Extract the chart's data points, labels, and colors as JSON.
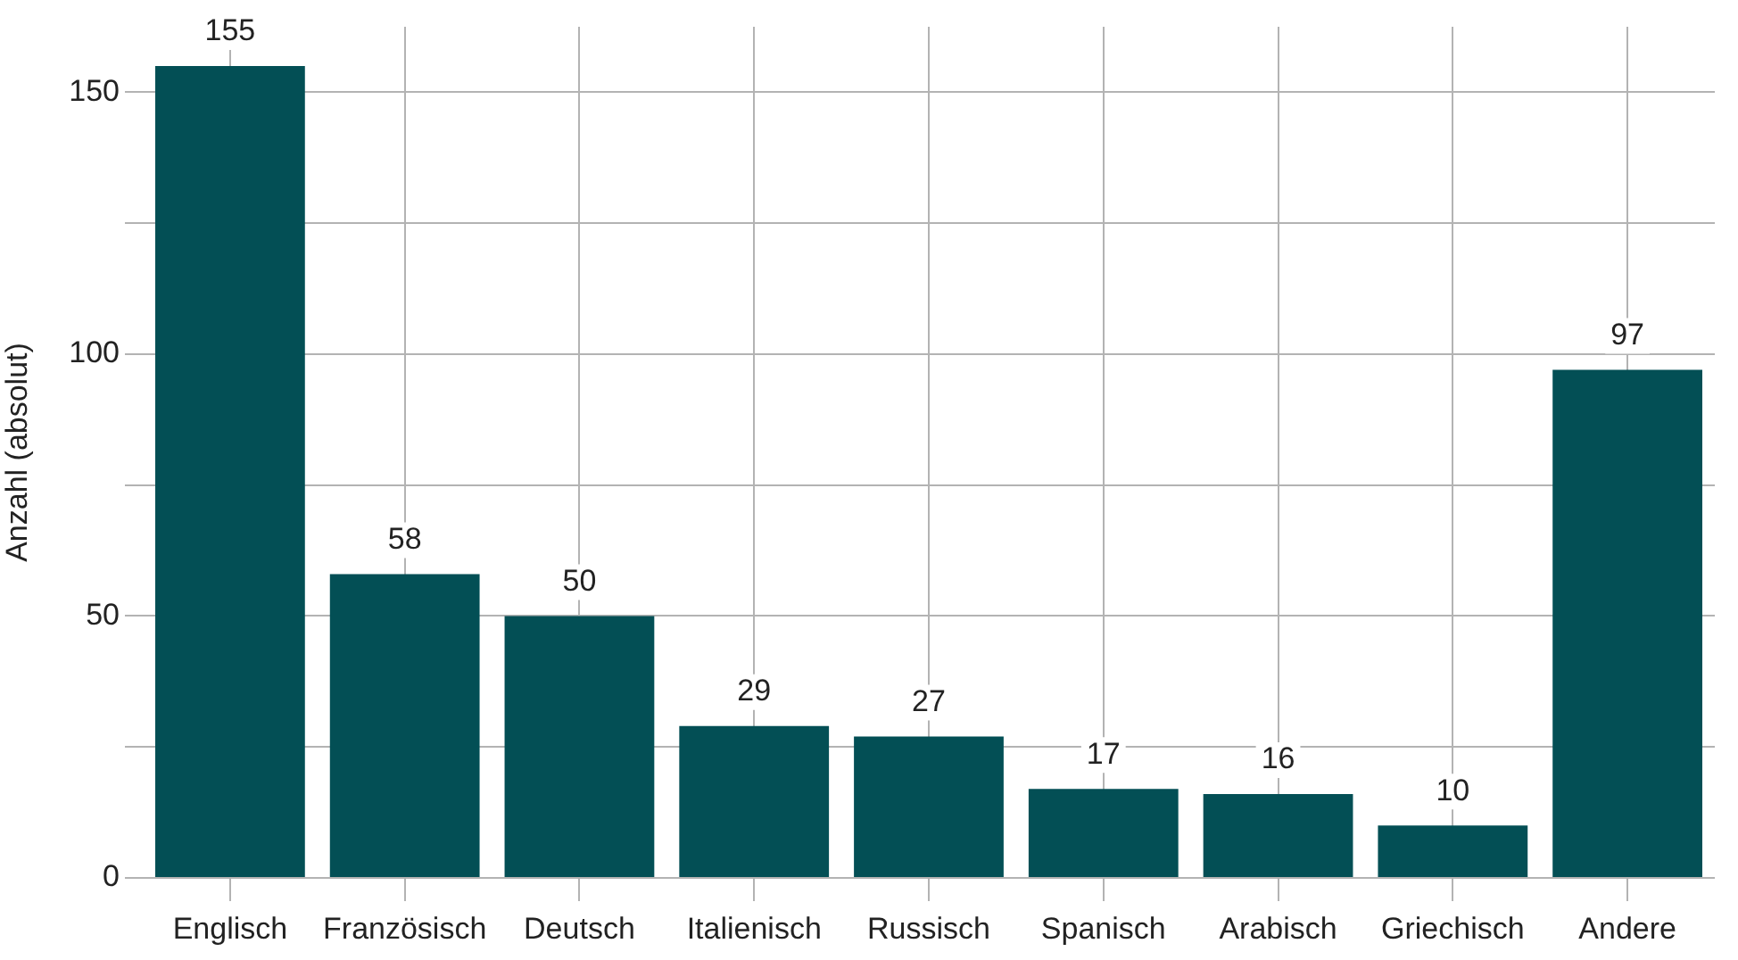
{
  "chart_data": {
    "type": "bar",
    "ylabel": "Anzahl (absolut)",
    "categories": [
      "Englisch",
      "Französisch",
      "Deutsch",
      "Italienisch",
      "Russisch",
      "Spanisch",
      "Arabisch",
      "Griechisch",
      "Andere"
    ],
    "values": [
      155,
      58,
      50,
      29,
      27,
      17,
      16,
      10,
      97
    ],
    "color": "#034f55",
    "ylim": [
      0,
      162.5
    ],
    "yticks": [
      0,
      {
        "value": 25,
        "label": null
      },
      50,
      {
        "value": 75,
        "label": null
      },
      100,
      {
        "value": 125,
        "label": null
      },
      150
    ],
    "grid": true,
    "data_labels": true
  }
}
